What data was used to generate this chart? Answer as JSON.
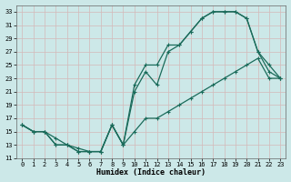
{
  "xlabel": "Humidex (Indice chaleur)",
  "bg_color": "#cce8e8",
  "grid_color": "#aacccc",
  "line_color": "#1a6b5a",
  "xlim": [
    -0.5,
    23.5
  ],
  "ylim": [
    11,
    34
  ],
  "xticks": [
    0,
    1,
    2,
    3,
    4,
    5,
    6,
    7,
    8,
    9,
    10,
    11,
    12,
    13,
    14,
    15,
    16,
    17,
    18,
    19,
    20,
    21,
    22,
    23
  ],
  "yticks": [
    11,
    13,
    15,
    17,
    19,
    21,
    23,
    25,
    27,
    29,
    31,
    33
  ],
  "line1_y": [
    16,
    15,
    15,
    14,
    13,
    12.5,
    12,
    12,
    16,
    13,
    22,
    25,
    25,
    28,
    28,
    30,
    32,
    33,
    33,
    33,
    32,
    27,
    25,
    23
  ],
  "line2_y": [
    16,
    15,
    15,
    13,
    13,
    12,
    12,
    12,
    16,
    13,
    21,
    24,
    22,
    27,
    28,
    30,
    32,
    33,
    33,
    33,
    32,
    27,
    24,
    23
  ],
  "line3_y": [
    16,
    15,
    15,
    13,
    13,
    12,
    12,
    12,
    16,
    13,
    15,
    17,
    17,
    18,
    19,
    20,
    21,
    22,
    23,
    24,
    25,
    26,
    23,
    23
  ]
}
